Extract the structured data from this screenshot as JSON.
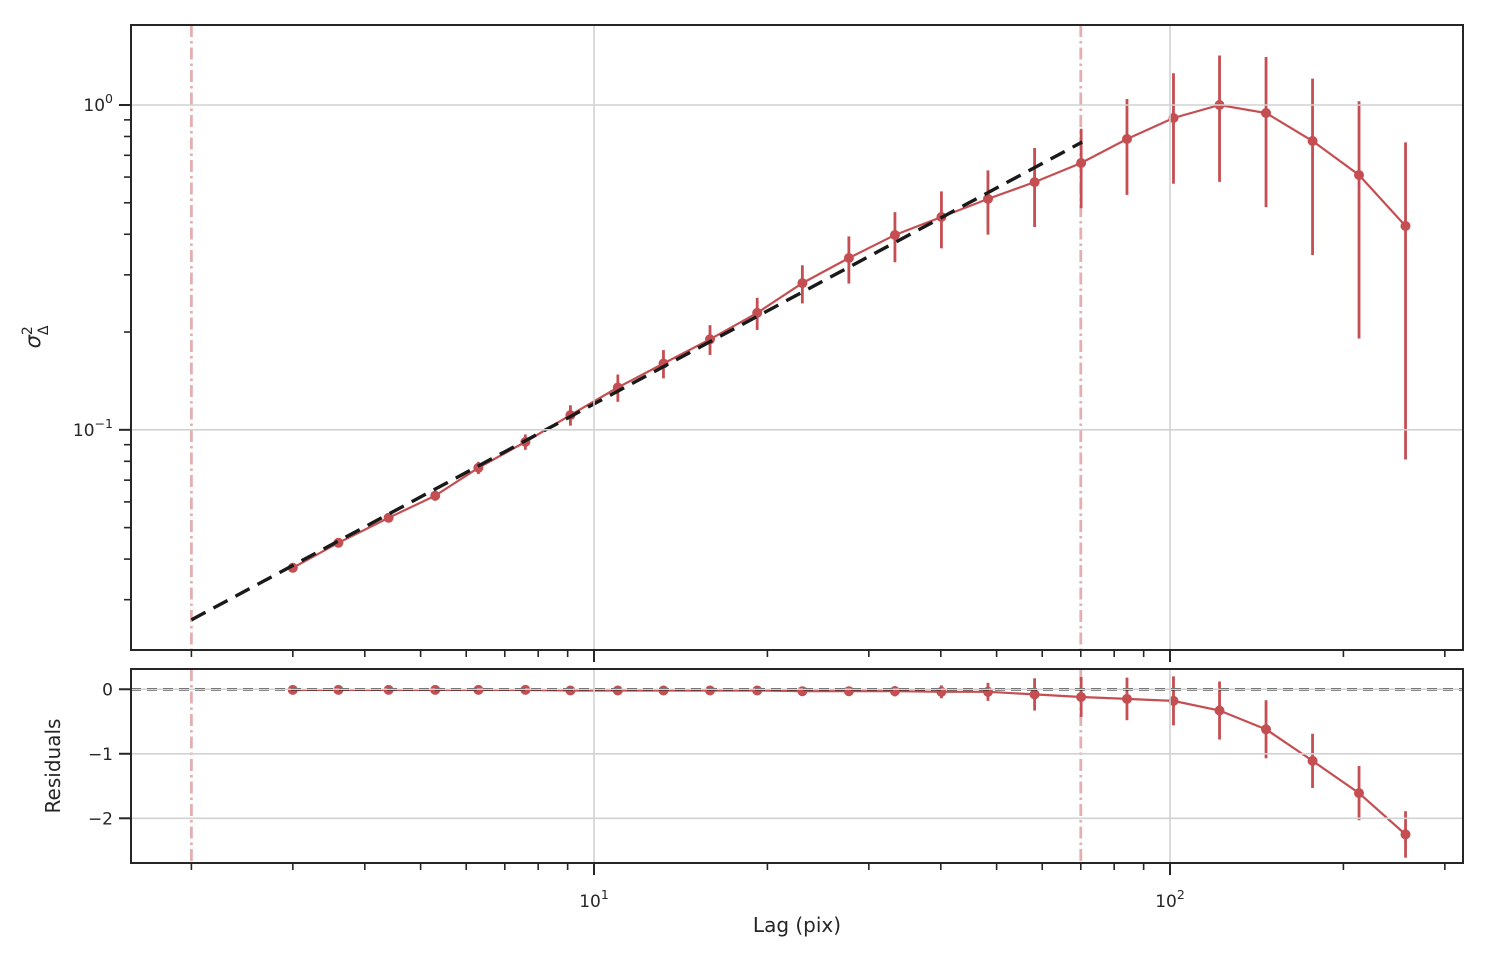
{
  "figure": {
    "kind": "matplotlib-style structure function plot",
    "background": "#ffffff"
  },
  "colors": {
    "data_series": "#c44e52",
    "fit_line": "#1a1a1a",
    "zero_line": "#1a1a1a",
    "fit_range_vline": "#c44e52",
    "fit_range_vline_alpha": 0.45,
    "grid": "#d2d2d2",
    "spine": "#262626",
    "tick_label": "#262626"
  },
  "chart_data": [
    {
      "type": "line",
      "name": "structure-function-panel",
      "title": "",
      "xlabel": "Lag (pix)",
      "ylabel": "sigma^2_Delta",
      "ylabel_parts": {
        "symbol": "σ",
        "sup": "2",
        "sub": "Δ"
      },
      "xscale": "log",
      "yscale": "log",
      "xlim": [
        1.571,
        322.6
      ],
      "ylim": [
        0.021,
        1.763
      ],
      "grid": true,
      "legend": "none",
      "x_ticks": [
        {
          "value": 10,
          "label": "10^1"
        },
        {
          "value": 100,
          "label": "10^2"
        }
      ],
      "y_ticks": [
        {
          "value": 1,
          "label": "10^0"
        },
        {
          "value": 0.1,
          "label": "10^-1"
        }
      ],
      "series": [
        {
          "name": "sigma2-data-with-errorbars",
          "marker": "circle",
          "x": [
            3.0,
            3.6,
            4.4,
            5.3,
            6.3,
            7.6,
            9.1,
            11.0,
            13.2,
            15.9,
            19.2,
            23.0,
            27.7,
            33.3,
            40.1,
            48.3,
            58.2,
            70.1,
            84.2,
            101.4,
            121.9,
            146.8,
            176.8,
            212.9,
            256.4
          ],
          "y": [
            0.0376,
            0.0449,
            0.0536,
            0.0627,
            0.0764,
            0.0918,
            0.111,
            0.135,
            0.16,
            0.19,
            0.229,
            0.283,
            0.338,
            0.398,
            0.452,
            0.514,
            0.579,
            0.663,
            0.786,
            0.912,
            1.0,
            0.945,
            0.775,
            0.609,
            0.424
          ],
          "yerr": [
            0.0008,
            0.0011,
            0.0015,
            0.0022,
            0.0033,
            0.005,
            0.008,
            0.013,
            0.016,
            0.02,
            0.026,
            0.038,
            0.056,
            0.07,
            0.09,
            0.115,
            0.158,
            0.182,
            0.257,
            0.34,
            0.42,
            0.46,
            0.43,
            0.418,
            0.343
          ]
        }
      ],
      "fit_line": {
        "name": "power-law-fit-dashed",
        "style": "dashed",
        "x": [
          2.0,
          70.4
        ],
        "y": [
          0.026,
          0.769
        ]
      },
      "vlines": {
        "name": "fit-range-markers",
        "style": "dashdot",
        "x": [
          2.0,
          70.0
        ]
      }
    },
    {
      "type": "line",
      "name": "residuals-panel",
      "title": "",
      "xlabel": "Lag (pix)",
      "ylabel": "Residuals",
      "xscale": "log",
      "yscale": "linear",
      "xlim": [
        1.571,
        322.6
      ],
      "ylim": [
        -2.693,
        0.314
      ],
      "grid": true,
      "legend": "none",
      "y_ticks": [
        {
          "value": 0,
          "label": "0"
        },
        {
          "value": -1,
          "label": "−1"
        },
        {
          "value": -2,
          "label": "−2"
        }
      ],
      "series": [
        {
          "name": "residuals-with-errorbars",
          "marker": "circle",
          "x": [
            3.0,
            3.6,
            4.4,
            5.3,
            6.3,
            7.6,
            9.1,
            11.0,
            13.2,
            15.9,
            19.2,
            23.0,
            27.7,
            33.3,
            40.1,
            48.3,
            58.2,
            70.1,
            84.2,
            101.4,
            121.9,
            146.8,
            176.8,
            212.9,
            256.4
          ],
          "y": [
            -0.01,
            -0.01,
            -0.01,
            -0.01,
            -0.01,
            -0.01,
            -0.02,
            -0.02,
            -0.02,
            -0.02,
            -0.02,
            -0.03,
            -0.03,
            -0.03,
            -0.04,
            -0.04,
            -0.08,
            -0.12,
            -0.15,
            -0.18,
            -0.33,
            -0.62,
            -1.11,
            -1.61,
            -2.25
          ],
          "yerr": [
            0.02,
            0.02,
            0.02,
            0.03,
            0.03,
            0.03,
            0.04,
            0.04,
            0.05,
            0.05,
            0.06,
            0.06,
            0.07,
            0.08,
            0.1,
            0.14,
            0.25,
            0.31,
            0.33,
            0.38,
            0.45,
            0.45,
            0.42,
            0.42,
            0.36
          ]
        }
      ],
      "hline": {
        "name": "zero-residual-line",
        "style": "dashed",
        "y": 0
      },
      "vlines": {
        "name": "fit-range-markers",
        "style": "dashdot",
        "x": [
          2.0,
          70.0
        ]
      }
    }
  ]
}
